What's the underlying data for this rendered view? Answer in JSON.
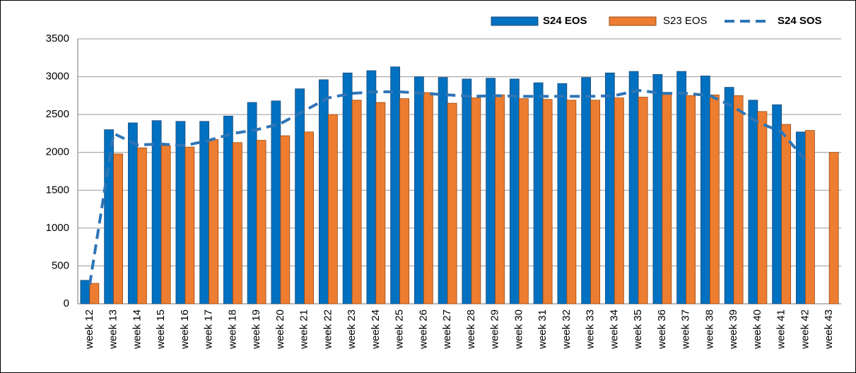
{
  "chart_data": {
    "type": "bar",
    "categories": [
      "week 12",
      "week 13",
      "week 14",
      "week 15",
      "week 16",
      "week 17",
      "week 18",
      "week 19",
      "week 20",
      "week 21",
      "week 22",
      "week 23",
      "week 24",
      "week 25",
      "week 26",
      "week 27",
      "week 28",
      "week 29",
      "week 30",
      "week 31",
      "week 32",
      "week 33",
      "week 34",
      "week 35",
      "week 36",
      "week 37",
      "week 38",
      "week 39",
      "week 40",
      "week 41",
      "week 42",
      "week 43"
    ],
    "series": [
      {
        "name": "S24 EOS",
        "type": "bar",
        "color": "#0070c0",
        "values": [
          310,
          2300,
          2390,
          2420,
          2410,
          2410,
          2480,
          2660,
          2680,
          2840,
          2960,
          3050,
          3080,
          3130,
          3000,
          2990,
          2970,
          2980,
          2970,
          2920,
          2910,
          2990,
          3050,
          3070,
          3030,
          3070,
          3010,
          2860,
          2690,
          2630,
          2270,
          null
        ]
      },
      {
        "name": "S23 EOS",
        "type": "bar",
        "color": "#ed7d31",
        "values": [
          270,
          1980,
          2060,
          2090,
          2070,
          2170,
          2130,
          2160,
          2220,
          2270,
          2500,
          2690,
          2660,
          2710,
          2790,
          2650,
          2720,
          2760,
          2710,
          2700,
          2690,
          2690,
          2720,
          2730,
          2780,
          2750,
          2760,
          2750,
          2540,
          2370,
          2290,
          2000
        ]
      },
      {
        "name": "S24 SOS",
        "type": "line",
        "color": "#2e75b6",
        "dashed": true,
        "values": [
          250,
          2250,
          2100,
          2110,
          2090,
          2160,
          2250,
          2300,
          2380,
          2550,
          2720,
          2780,
          2800,
          2800,
          2780,
          2760,
          2740,
          2750,
          2740,
          2740,
          2740,
          2740,
          2750,
          2820,
          2780,
          2780,
          2750,
          2600,
          2400,
          2270,
          1900,
          null
        ]
      }
    ],
    "ylim": [
      0,
      3500
    ],
    "yticks": [
      0,
      500,
      1000,
      1500,
      2000,
      2500,
      3000,
      3500
    ],
    "grid": true,
    "legend": "top-right"
  }
}
